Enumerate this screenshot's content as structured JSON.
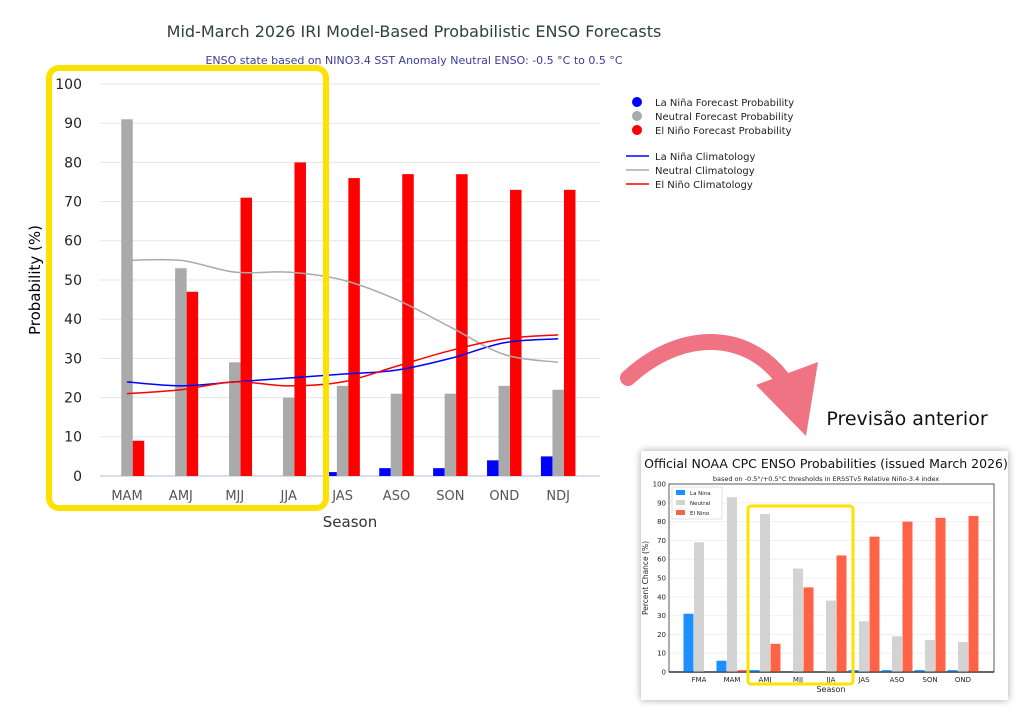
{
  "annotation": {
    "caption": "Previsão anterior",
    "highlight_color": "#ffe100",
    "arrow_color": "#f07383"
  },
  "chart_data": [
    {
      "type": "bar",
      "title": "Mid-March 2026 IRI Model-Based Probabilistic ENSO Forecasts",
      "subtitle": "ENSO state based on NINO3.4 SST Anomaly Neutral ENSO: -0.5 °C to 0.5 °C",
      "xlabel": "Season",
      "ylabel": "Probability (%)",
      "ylim": [
        0,
        100
      ],
      "yticks": [
        0,
        10,
        20,
        30,
        40,
        50,
        60,
        70,
        80,
        90,
        100
      ],
      "grid": true,
      "legend_position": "right",
      "categories": [
        "MAM",
        "AMJ",
        "MJJ",
        "JJA",
        "JAS",
        "ASO",
        "SON",
        "OND",
        "NDJ"
      ],
      "series": [
        {
          "name": "La Niña Forecast Probability",
          "color": "#0000ff",
          "values": [
            0,
            0,
            0,
            0,
            1,
            2,
            2,
            4,
            5
          ]
        },
        {
          "name": "Neutral Forecast Probability",
          "color": "#aaaaaa",
          "values": [
            91,
            53,
            29,
            20,
            23,
            21,
            21,
            23,
            22
          ]
        },
        {
          "name": "El Niño Forecast Probability",
          "color": "#ff0000",
          "values": [
            9,
            47,
            71,
            80,
            76,
            77,
            77,
            73,
            73
          ]
        }
      ],
      "lines": [
        {
          "name": "La Niña Climatology",
          "color": "#0000ff",
          "values": [
            24,
            23,
            24,
            25,
            26,
            27,
            30,
            34,
            35
          ]
        },
        {
          "name": "Neutral Climatology",
          "color": "#aaaaaa",
          "values": [
            55,
            55,
            52,
            52,
            50,
            45,
            38,
            31,
            29
          ]
        },
        {
          "name": "El Niño Climatology",
          "color": "#ff0000",
          "values": [
            21,
            22,
            24,
            23,
            24,
            28,
            32,
            35,
            36
          ]
        }
      ]
    },
    {
      "type": "bar",
      "title": "Official NOAA CPC ENSO Probabilities (issued March 2026)",
      "subtitle": "based on -0.5°/+0.5°C thresholds in ERSSTv5 Relative Niño-3.4 index",
      "xlabel": "Season",
      "ylabel": "Percent Chance (%)",
      "ylim": [
        0,
        100
      ],
      "yticks": [
        0,
        10,
        20,
        30,
        40,
        50,
        60,
        70,
        80,
        90,
        100
      ],
      "grid": true,
      "legend_position": "top-left",
      "categories": [
        "FMA",
        "MAM",
        "AMJ",
        "MJJ",
        "JJA",
        "JAS",
        "ASO",
        "SON",
        "OND"
      ],
      "series": [
        {
          "name": "La Nina",
          "color": "#1e8fff",
          "values": [
            31,
            6,
            1,
            0,
            0,
            1,
            1,
            1,
            1
          ]
        },
        {
          "name": "Neutral",
          "color": "#d3d3d3",
          "values": [
            69,
            93,
            84,
            55,
            38,
            27,
            19,
            17,
            16
          ]
        },
        {
          "name": "El Nino",
          "color": "#ff6347",
          "values": [
            0,
            1,
            15,
            45,
            62,
            72,
            80,
            82,
            83
          ]
        }
      ]
    }
  ]
}
